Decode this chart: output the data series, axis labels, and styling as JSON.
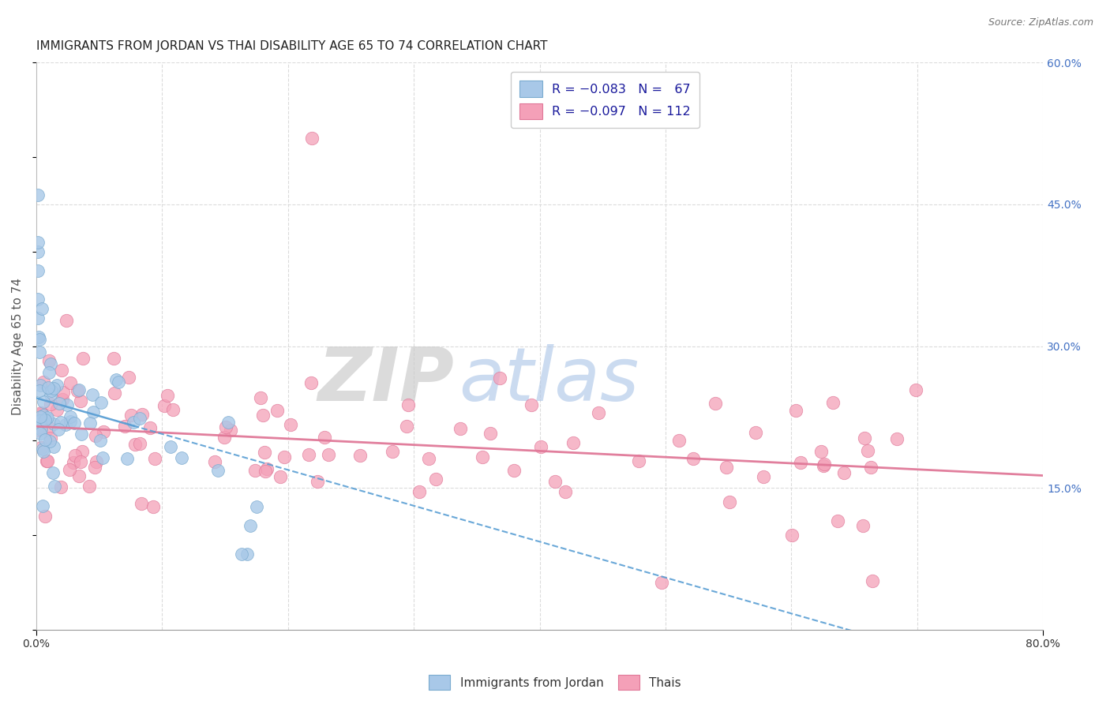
{
  "title": "IMMIGRANTS FROM JORDAN VS THAI DISABILITY AGE 65 TO 74 CORRELATION CHART",
  "source": "Source: ZipAtlas.com",
  "ylabel": "Disability Age 65 to 74",
  "xlim": [
    0.0,
    0.8
  ],
  "ylim": [
    0.0,
    0.6
  ],
  "yticks_right": [
    0.15,
    0.3,
    0.45,
    0.6
  ],
  "yticklabels_right": [
    "15.0%",
    "30.0%",
    "45.0%",
    "60.0%"
  ],
  "jordan_color": "#a8c8e8",
  "jordan_edge": "#7aabcf",
  "thai_color": "#f4a0b8",
  "thai_edge": "#e07898",
  "jordan_R": -0.083,
  "jordan_N": 67,
  "thai_R": -0.097,
  "thai_N": 112,
  "watermark_zip_color": "#cccccc",
  "watermark_atlas_color": "#b0c8e8",
  "background_color": "#ffffff",
  "grid_color": "#d8d8d8",
  "title_color": "#222222",
  "axis_label_color": "#555555",
  "right_tick_color": "#4472c4",
  "jordan_line_color": "#5a9fd4",
  "thai_line_color": "#e07898",
  "jordan_seed": 42,
  "thai_seed": 77
}
